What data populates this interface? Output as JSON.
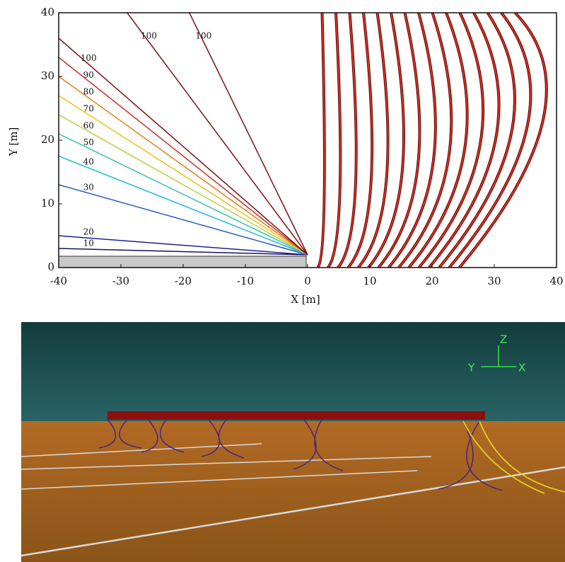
{
  "chart_data": {
    "type": "contour",
    "xlabel": "X [m]",
    "ylabel": "Y [m]",
    "xlim": [
      -40,
      40
    ],
    "ylim": [
      0,
      40
    ],
    "xticks": [
      -40,
      -30,
      -20,
      -10,
      0,
      10,
      20,
      30,
      40
    ],
    "yticks": [
      0,
      10,
      20,
      30,
      40
    ],
    "contours": [
      {
        "level": 10,
        "color": "#14145e",
        "x": [
          -40,
          0
        ],
        "y": [
          3,
          2
        ]
      },
      {
        "level": 20,
        "color": "#20208f",
        "x": [
          -40,
          0
        ],
        "y": [
          5,
          2
        ]
      },
      {
        "level": 30,
        "color": "#2458c0",
        "x": [
          -40,
          0
        ],
        "y": [
          13,
          2
        ]
      },
      {
        "level": 40,
        "color": "#1fb6e0",
        "x": [
          -40,
          0
        ],
        "y": [
          17.5,
          2
        ]
      },
      {
        "level": 50,
        "color": "#3cc4a8",
        "x": [
          -40,
          0
        ],
        "y": [
          21,
          2
        ]
      },
      {
        "level": 60,
        "color": "#b8d040",
        "x": [
          -40,
          0
        ],
        "y": [
          24,
          2
        ]
      },
      {
        "level": 70,
        "color": "#f0c020",
        "x": [
          -40,
          0
        ],
        "y": [
          27,
          2
        ]
      },
      {
        "level": 80,
        "color": "#e87a1a",
        "x": [
          -40,
          0
        ],
        "y": [
          30,
          2
        ]
      },
      {
        "level": 90,
        "color": "#c8302a",
        "x": [
          -40,
          0
        ],
        "y": [
          33,
          2
        ]
      },
      {
        "level": 100,
        "color": "#7a1414",
        "x": [
          -40,
          0
        ],
        "y": [
          36,
          2
        ]
      },
      {
        "level": 100,
        "color": "#7a1414",
        "x": [
          -29,
          0
        ],
        "y": [
          40,
          2
        ]
      },
      {
        "level": 100,
        "color": "#7a1414",
        "x": [
          -19,
          0
        ],
        "y": [
          40,
          2
        ]
      }
    ]
  },
  "render": {
    "axis_labels": [
      "Z",
      "Y",
      "X"
    ]
  }
}
